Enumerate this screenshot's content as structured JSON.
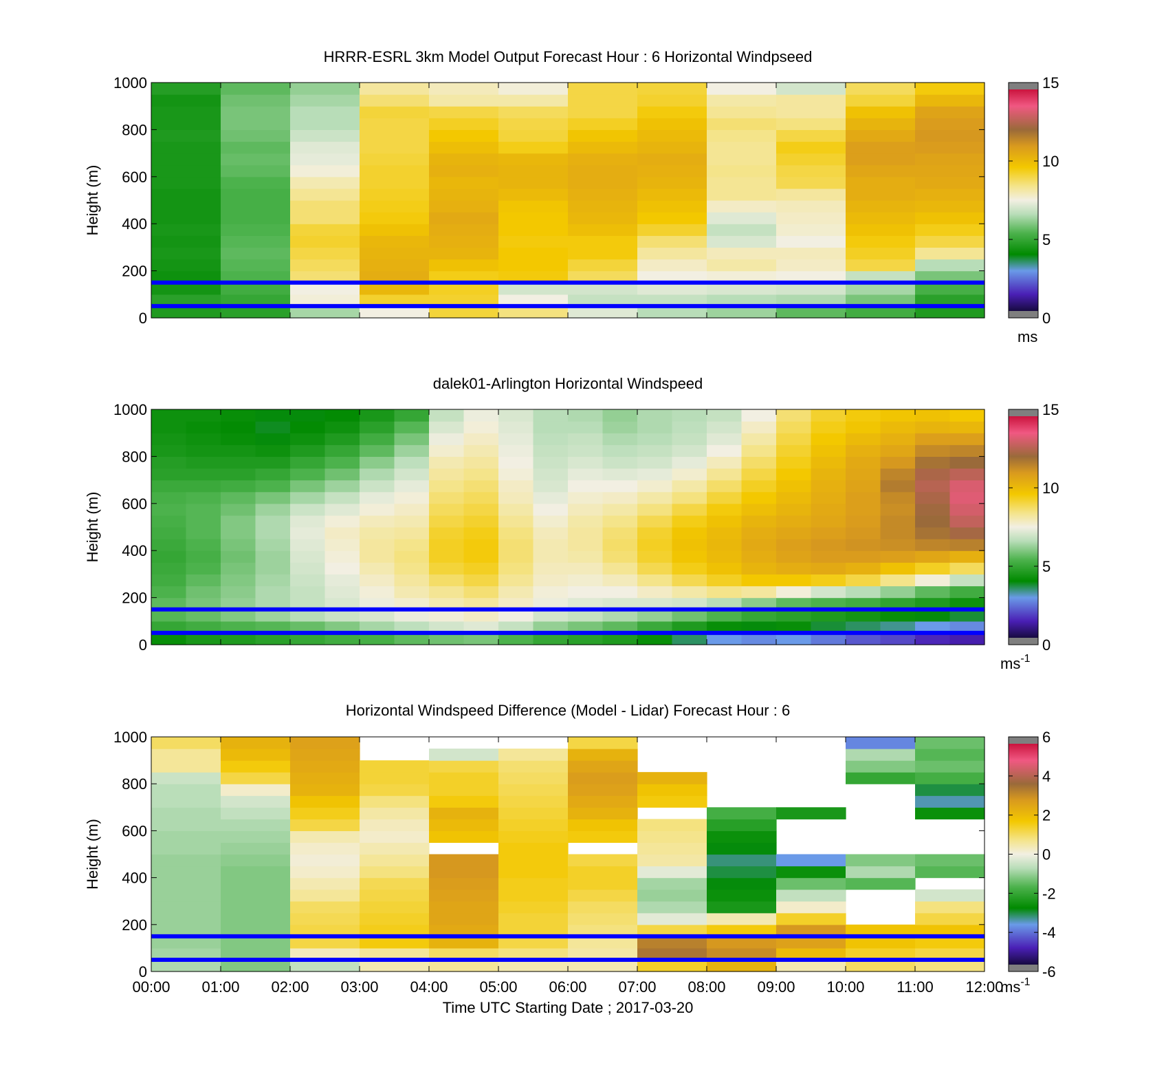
{
  "chart_data": [
    {
      "type": "heatmap",
      "title": "HRRR-ESRL 3km Model Output   Forecast Hour : 6 Horizontal Windpseed",
      "ylabel": "Height (m)",
      "ylim": [
        0,
        1000
      ],
      "yticks": [
        "0",
        "200",
        "400",
        "600",
        "800",
        "1000"
      ],
      "xlim": [
        0,
        12
      ],
      "xticks": [],
      "colorbar": {
        "ticks": [
          "0",
          "5",
          "10",
          "15"
        ],
        "range": [
          0,
          15
        ],
        "unit": "ms"
      },
      "reference_lines_m": [
        150,
        50
      ],
      "heights_m": [
        25,
        75,
        125,
        175,
        225,
        275,
        325,
        375,
        425,
        475,
        525,
        575,
        625,
        675,
        725,
        775,
        825,
        875,
        925,
        975
      ],
      "hours_utc": [
        "00:00",
        "01:00",
        "02:00",
        "03:00",
        "04:00",
        "05:00",
        "06:00",
        "07:00",
        "08:00",
        "09:00",
        "10:00",
        "11:00"
      ],
      "columns_m_s": [
        [
          4.6,
          4.8,
          4.4,
          4.3,
          4.4,
          4.5,
          4.4,
          4.5,
          4.4,
          4.4,
          4.4,
          4.5,
          4.5,
          4.5,
          4.5,
          4.6,
          4.5,
          4.5,
          4.4,
          4.7
        ],
        [
          4.8,
          5.0,
          5.2,
          5.4,
          5.5,
          5.6,
          5.5,
          5.4,
          5.3,
          5.3,
          5.3,
          5.4,
          5.6,
          5.7,
          5.6,
          5.8,
          5.9,
          5.9,
          5.8,
          5.6
        ],
        [
          6.4,
          7.6,
          7.5,
          8.6,
          8.8,
          9.0,
          9.2,
          9.1,
          8.6,
          8.6,
          8.3,
          8.0,
          7.6,
          7.3,
          7.2,
          6.9,
          6.6,
          6.6,
          6.4,
          6.2
        ],
        [
          7.5,
          9.2,
          10.1,
          10.4,
          10.3,
          10.2,
          10.1,
          9.8,
          9.5,
          9.4,
          9.3,
          9.2,
          9.2,
          9.1,
          9.0,
          9.0,
          9.0,
          9.1,
          8.6,
          8.2
        ],
        [
          9.1,
          9.2,
          9.3,
          9.4,
          9.8,
          10.2,
          10.3,
          10.4,
          10.5,
          10.3,
          10.2,
          10.1,
          10.3,
          10.2,
          9.9,
          9.6,
          9.3,
          9.0,
          8.1,
          7.9
        ],
        [
          8.5,
          7.5,
          7.0,
          9.5,
          9.6,
          9.6,
          9.5,
          9.6,
          9.6,
          9.7,
          10.0,
          10.2,
          10.2,
          10.1,
          9.4,
          9.1,
          9.0,
          8.8,
          8.1,
          7.6
        ],
        [
          7.2,
          6.8,
          7.0,
          8.8,
          9.1,
          9.5,
          9.5,
          9.9,
          10.1,
          10.2,
          10.3,
          10.4,
          10.4,
          10.3,
          10.0,
          9.7,
          9.3,
          9.0,
          9.0,
          9.0
        ],
        [
          6.6,
          6.8,
          7.2,
          7.5,
          7.8,
          8.2,
          8.6,
          9.2,
          9.6,
          9.8,
          10.0,
          10.2,
          10.3,
          10.4,
          10.2,
          10.0,
          9.8,
          9.5,
          9.2,
          9.1
        ],
        [
          6.3,
          6.6,
          7.1,
          7.6,
          8.1,
          7.9,
          7.1,
          6.8,
          7.2,
          7.8,
          8.3,
          8.3,
          8.4,
          8.3,
          8.3,
          8.4,
          8.6,
          8.3,
          8.1,
          7.5
        ],
        [
          5.6,
          6.5,
          7.0,
          7.5,
          7.8,
          7.9,
          7.5,
          7.7,
          7.8,
          7.9,
          8.2,
          8.9,
          9.0,
          9.2,
          9.4,
          9.0,
          8.5,
          8.2,
          8.2,
          7.0
        ],
        [
          5.2,
          5.9,
          6.4,
          6.8,
          9.0,
          9.3,
          9.5,
          9.8,
          10.0,
          10.2,
          10.4,
          10.4,
          10.6,
          10.8,
          10.8,
          10.5,
          10.2,
          9.8,
          9.1,
          8.8
        ],
        [
          4.6,
          4.8,
          5.3,
          5.9,
          6.6,
          8.3,
          9.0,
          9.4,
          9.8,
          10.1,
          10.3,
          10.5,
          10.6,
          10.7,
          10.9,
          11.0,
          10.9,
          10.7,
          10.1,
          9.5
        ]
      ]
    },
    {
      "type": "heatmap",
      "title": "dalek01-Arlington  Horizontal Windspeed",
      "ylabel": "Height (m)",
      "ylim": [
        0,
        1000
      ],
      "yticks": [
        "0",
        "200",
        "400",
        "600",
        "800",
        "1000"
      ],
      "xlim": [
        0,
        12
      ],
      "xticks": [],
      "colorbar": {
        "ticks": [
          "0",
          "5",
          "10",
          "15"
        ],
        "range": [
          0,
          15
        ],
        "unit": "ms",
        "unit_sup": "-1"
      },
      "reference_lines_m": [
        150,
        50
      ],
      "heights_m": [
        25,
        75,
        125,
        175,
        225,
        275,
        325,
        375,
        425,
        475,
        525,
        575,
        625,
        675,
        725,
        775,
        825,
        875,
        925,
        975
      ],
      "hours_utc": [
        "00:00",
        "00:30",
        "01:00",
        "01:30",
        "02:00",
        "02:30",
        "03:00",
        "03:30",
        "04:00",
        "04:30",
        "05:00",
        "05:30",
        "06:00",
        "06:30",
        "07:00",
        "07:30",
        "08:00",
        "08:30",
        "09:00",
        "09:30",
        "10:00",
        "10:30",
        "11:00",
        "11:30"
      ],
      "columns_m_s": [
        [
          4.2,
          5.0,
          5.5,
          5.6,
          5.4,
          5.2,
          5.1,
          5.0,
          5.1,
          5.2,
          5.3,
          5.4,
          5.3,
          5.1,
          4.8,
          4.7,
          4.5,
          4.4,
          4.3,
          4.3
        ],
        [
          4.5,
          5.2,
          5.7,
          5.9,
          5.8,
          5.6,
          5.4,
          5.3,
          5.4,
          5.5,
          5.5,
          5.5,
          5.4,
          5.1,
          4.8,
          4.6,
          4.4,
          4.3,
          4.2,
          4.3
        ],
        [
          4.6,
          5.4,
          6.0,
          6.2,
          6.1,
          6.0,
          5.9,
          5.8,
          5.9,
          6.0,
          6.0,
          5.8,
          5.6,
          5.2,
          4.8,
          4.6,
          4.4,
          4.2,
          4.1,
          4.2
        ],
        [
          4.8,
          5.5,
          6.3,
          6.5,
          6.5,
          6.4,
          6.3,
          6.3,
          6.4,
          6.5,
          6.5,
          6.3,
          5.9,
          5.4,
          5.0,
          4.6,
          4.3,
          4.0,
          3.9,
          4.0
        ],
        [
          5.0,
          5.7,
          6.6,
          6.8,
          6.8,
          6.9,
          7.0,
          7.1,
          7.2,
          7.3,
          7.2,
          6.9,
          6.4,
          5.9,
          5.4,
          5.0,
          4.6,
          4.3,
          4.1,
          4.0
        ],
        [
          5.2,
          6.0,
          6.9,
          7.1,
          7.2,
          7.3,
          7.5,
          7.6,
          7.7,
          7.8,
          7.6,
          7.2,
          6.8,
          6.3,
          5.8,
          5.4,
          5.0,
          4.6,
          4.3,
          4.1
        ],
        [
          5.3,
          6.4,
          7.1,
          7.4,
          7.6,
          7.8,
          8.0,
          8.2,
          8.2,
          8.1,
          7.9,
          7.6,
          7.3,
          6.9,
          6.5,
          6.1,
          5.6,
          5.2,
          4.8,
          4.5
        ],
        [
          5.6,
          6.7,
          7.4,
          7.7,
          8.0,
          8.2,
          8.4,
          8.5,
          8.4,
          8.2,
          8.0,
          7.8,
          7.6,
          7.3,
          7.0,
          6.7,
          6.3,
          5.9,
          5.5,
          5.0
        ],
        [
          5.8,
          7.0,
          7.6,
          8.0,
          8.3,
          8.7,
          9.1,
          9.3,
          9.3,
          9.2,
          9.0,
          8.8,
          8.6,
          8.4,
          8.2,
          8.0,
          7.7,
          7.4,
          7.1,
          6.8
        ],
        [
          5.9,
          7.2,
          7.8,
          8.2,
          8.6,
          9.0,
          9.3,
          9.5,
          9.5,
          9.4,
          9.2,
          9.0,
          8.8,
          8.6,
          8.4,
          8.2,
          8.0,
          7.8,
          7.6,
          7.4
        ],
        [
          5.4,
          6.8,
          7.5,
          7.8,
          8.0,
          8.3,
          8.5,
          8.6,
          8.6,
          8.5,
          8.3,
          8.1,
          7.9,
          7.8,
          7.6,
          7.5,
          7.4,
          7.3,
          7.2,
          7.1
        ],
        [
          5.0,
          6.2,
          7.0,
          7.4,
          7.6,
          7.8,
          7.9,
          8.0,
          8.0,
          7.9,
          7.7,
          7.5,
          7.3,
          7.1,
          7.0,
          6.9,
          6.8,
          6.7,
          6.6,
          6.6
        ],
        [
          4.8,
          5.9,
          6.8,
          7.2,
          7.5,
          7.7,
          7.9,
          8.1,
          8.2,
          8.2,
          8.1,
          7.9,
          7.7,
          7.5,
          7.3,
          7.1,
          6.9,
          6.8,
          6.6,
          6.5
        ],
        [
          4.6,
          5.6,
          6.5,
          7.1,
          7.5,
          7.9,
          8.3,
          8.6,
          8.7,
          8.6,
          8.4,
          8.1,
          7.8,
          7.5,
          7.2,
          6.9,
          6.7,
          6.5,
          6.3,
          6.2
        ],
        [
          4.2,
          5.1,
          6.2,
          7.1,
          7.8,
          8.4,
          8.9,
          9.2,
          9.3,
          9.2,
          8.9,
          8.5,
          8.1,
          7.7,
          7.3,
          7.0,
          6.8,
          6.6,
          6.5,
          6.5
        ],
        [
          3.6,
          4.6,
          5.8,
          7.0,
          8.1,
          8.9,
          9.4,
          9.7,
          9.8,
          9.7,
          9.4,
          9.0,
          8.5,
          8.1,
          7.7,
          7.3,
          7.0,
          6.8,
          6.7,
          6.6
        ],
        [
          3.0,
          4.2,
          5.4,
          6.6,
          8.4,
          9.3,
          9.8,
          10.0,
          10.1,
          10.0,
          9.8,
          9.5,
          9.1,
          8.7,
          8.3,
          7.9,
          7.5,
          7.2,
          7.0,
          6.8
        ],
        [
          2.8,
          4.0,
          5.0,
          6.1,
          8.2,
          9.6,
          10.2,
          10.4,
          10.5,
          10.4,
          10.2,
          9.9,
          9.6,
          9.3,
          9.0,
          8.7,
          8.4,
          8.1,
          7.8,
          7.5
        ],
        [
          3.0,
          4.2,
          4.8,
          5.6,
          7.6,
          9.6,
          10.4,
          10.7,
          10.8,
          10.6,
          10.4,
          10.2,
          10.0,
          9.8,
          9.6,
          9.4,
          9.2,
          9.0,
          8.8,
          8.6
        ],
        [
          2.6,
          3.8,
          4.6,
          5.4,
          7.0,
          9.4,
          10.5,
          10.9,
          11.0,
          10.8,
          10.6,
          10.5,
          10.4,
          10.3,
          10.2,
          10.0,
          9.8,
          9.6,
          9.4,
          9.2
        ],
        [
          2.2,
          3.6,
          4.4,
          5.2,
          6.6,
          9.0,
          10.3,
          10.9,
          11.1,
          11.0,
          10.9,
          10.8,
          10.8,
          10.7,
          10.6,
          10.5,
          10.3,
          10.0,
          9.7,
          9.5
        ],
        [
          2.0,
          3.4,
          4.2,
          4.9,
          6.2,
          8.4,
          9.8,
          10.8,
          11.2,
          11.3,
          11.3,
          11.2,
          11.3,
          11.6,
          11.4,
          11.0,
          10.6,
          10.3,
          10.0,
          9.7
        ],
        [
          1.6,
          3.0,
          4.0,
          4.6,
          5.6,
          7.6,
          9.3,
          10.6,
          11.4,
          11.8,
          12.0,
          12.1,
          12.3,
          12.5,
          12.3,
          11.8,
          11.3,
          10.8,
          10.2,
          9.8
        ],
        [
          1.4,
          2.8,
          3.8,
          4.3,
          5.2,
          6.8,
          8.8,
          10.3,
          11.5,
          12.2,
          12.7,
          13.0,
          13.2,
          13.1,
          12.6,
          12.0,
          11.4,
          10.8,
          10.1,
          9.6
        ]
      ]
    },
    {
      "type": "heatmap",
      "title": "Horizontal Windspeed Difference (Model - Lidar) Forecast Hour : 6",
      "ylabel": "Height (m)",
      "xlabel": "Time UTC  Starting Date ; 2017-03-20",
      "ylim": [
        0,
        1000
      ],
      "yticks": [
        "0",
        "200",
        "400",
        "600",
        "800",
        "1000"
      ],
      "xlim": [
        0,
        12
      ],
      "xticks": [
        "00:00",
        "01:00",
        "02:00",
        "03:00",
        "04:00",
        "05:00",
        "06:00",
        "07:00",
        "08:00",
        "09:00",
        "10:00",
        "11:00",
        "12:00"
      ],
      "colorbar": {
        "ticks": [
          "-6",
          "-4",
          "-2",
          "0",
          "2",
          "4",
          "6"
        ],
        "range": [
          -6,
          6
        ],
        "unit": "ms",
        "unit_sup": "-1"
      },
      "reference_lines_m": [
        150,
        50
      ],
      "heights_m": [
        25,
        75,
        125,
        175,
        225,
        275,
        325,
        375,
        425,
        475,
        525,
        575,
        625,
        675,
        725,
        775,
        825,
        875,
        925,
        975
      ],
      "hours_utc": [
        "00:00",
        "01:00",
        "02:00",
        "03:00",
        "04:00",
        "05:00",
        "06:00",
        "07:00",
        "08:00",
        "09:00",
        "10:00",
        "11:00"
      ],
      "columns_m_s": [
        [
          -0.8,
          -0.9,
          -1.0,
          -1.0,
          -1.0,
          -1.0,
          -1.0,
          -1.0,
          -1.0,
          -1.0,
          -0.9,
          -0.9,
          -0.8,
          -0.8,
          -0.7,
          -0.7,
          -0.5,
          0.6,
          0.6,
          1.0
        ],
        [
          -1.2,
          -1.2,
          -1.2,
          -1.2,
          -1.2,
          -1.2,
          -1.2,
          -1.2,
          -1.2,
          -1.1,
          -1.0,
          -0.9,
          -0.8,
          -0.6,
          -0.4,
          0.2,
          1.2,
          1.6,
          2.0,
          2.2
        ],
        [
          -0.6,
          0.3,
          1.2,
          1.2,
          1.1,
          1.0,
          0.6,
          0.4,
          0.2,
          0.1,
          0.2,
          0.4,
          1.2,
          1.5,
          1.8,
          2.2,
          2.3,
          2.4,
          2.5,
          2.6
        ],
        [
          0.4,
          0.6,
          1.6,
          1.5,
          1.4,
          1.3,
          1.2,
          1.1,
          0.8,
          0.6,
          0.4,
          0.2,
          0.3,
          0.5,
          0.8,
          1.2,
          1.3,
          1.3,
          null,
          null
        ],
        [
          0.6,
          1.0,
          2.2,
          2.4,
          2.5,
          2.5,
          2.6,
          2.7,
          2.8,
          2.8,
          null,
          1.8,
          2.0,
          2.2,
          1.6,
          1.4,
          1.4,
          1.2,
          -0.4,
          null
        ],
        [
          0.4,
          0.8,
          1.2,
          1.3,
          1.3,
          1.4,
          1.5,
          1.5,
          1.6,
          1.6,
          1.6,
          1.5,
          1.4,
          1.3,
          1.2,
          1.1,
          1.0,
          0.9,
          0.6,
          null
        ],
        [
          0.4,
          0.5,
          0.6,
          0.8,
          0.9,
          1.0,
          1.2,
          1.4,
          1.4,
          1.2,
          null,
          1.6,
          1.8,
          2.2,
          2.4,
          2.6,
          2.7,
          2.5,
          2.2,
          1.2
        ],
        [
          1.4,
          3.4,
          3.2,
          1.2,
          -0.2,
          -0.8,
          -1.0,
          -0.9,
          -0.2,
          0.5,
          0.6,
          0.7,
          0.8,
          null,
          1.6,
          1.8,
          2.2,
          null,
          null,
          null
        ],
        [
          2.2,
          3.0,
          2.8,
          1.6,
          0.4,
          -2.4,
          -2.6,
          -2.8,
          -3.0,
          -3.2,
          -2.8,
          -2.6,
          -2.2,
          -1.8,
          null,
          null,
          null,
          null,
          null,
          null
        ],
        [
          0.4,
          2.0,
          2.6,
          2.8,
          1.4,
          0.2,
          -0.6,
          -1.4,
          -2.6,
          -3.6,
          null,
          null,
          null,
          -2.4,
          null,
          null,
          null,
          null,
          null,
          null
        ],
        [
          1.0,
          1.4,
          1.8,
          1.8,
          null,
          null,
          null,
          -1.6,
          -0.8,
          -1.2,
          null,
          null,
          null,
          null,
          null,
          null,
          -2.0,
          -1.2,
          -0.8,
          -3.8
        ],
        [
          0.8,
          1.2,
          1.6,
          1.8,
          1.2,
          0.8,
          -0.4,
          null,
          -1.6,
          -1.4,
          null,
          null,
          null,
          -2.6,
          -3.4,
          -3.0,
          -1.8,
          -1.4,
          -1.6,
          -1.4
        ]
      ]
    }
  ]
}
